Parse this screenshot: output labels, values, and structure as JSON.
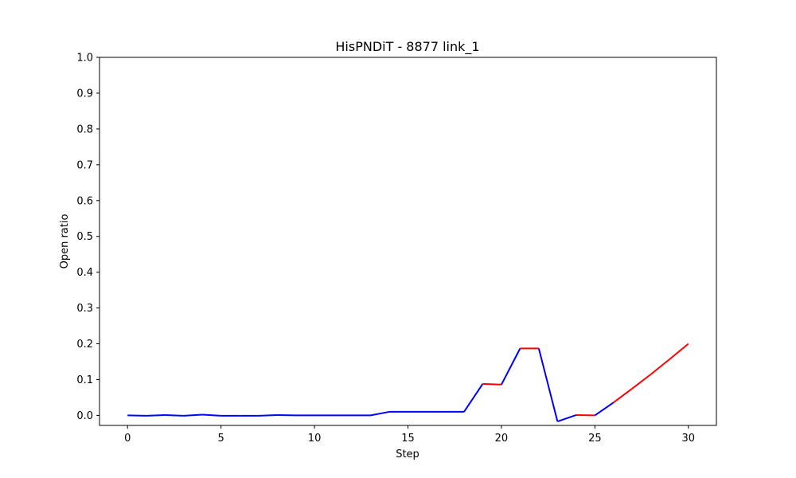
{
  "chart_data": {
    "type": "line",
    "title": "HisPNDiT - 8877 link_1",
    "xlabel": "Step",
    "ylabel": "Open ratio",
    "xlim": [
      -1.5,
      31.5
    ],
    "ylim": [
      -0.028,
      1.0
    ],
    "xticks": [
      0,
      5,
      10,
      15,
      20,
      25,
      30
    ],
    "yticks": [
      0.0,
      0.1,
      0.2,
      0.3,
      0.4,
      0.5,
      0.6,
      0.7,
      0.8,
      0.9,
      1.0
    ],
    "grid": false,
    "legend": "none",
    "x": [
      0,
      1,
      2,
      3,
      4,
      5,
      6,
      7,
      8,
      9,
      10,
      11,
      12,
      13,
      14,
      15,
      16,
      17,
      18,
      19,
      20,
      21,
      22,
      23,
      24,
      25,
      26,
      27,
      28,
      29,
      30
    ],
    "y": [
      0.0,
      -0.001,
      0.001,
      -0.001,
      0.002,
      -0.001,
      -0.001,
      -0.001,
      0.001,
      0.0,
      0.0,
      0.0,
      0.0,
      0.0,
      0.01,
      0.01,
      0.01,
      0.01,
      0.01,
      0.088,
      0.086,
      0.187,
      0.187,
      -0.017,
      0.001,
      0.0,
      0.036,
      0.075,
      0.115,
      0.157,
      0.2
    ],
    "segment_colors": [
      "blue",
      "blue",
      "blue",
      "blue",
      "blue",
      "blue",
      "blue",
      "blue",
      "blue",
      "blue",
      "blue",
      "blue",
      "blue",
      "blue",
      "blue",
      "blue",
      "blue",
      "blue",
      "blue",
      "red",
      "blue",
      "red",
      "blue",
      "blue",
      "red",
      "blue",
      "red",
      "red",
      "red",
      "red"
    ],
    "colors": {
      "blue": "#0000ff",
      "red": "#ff0000",
      "axis": "#000000"
    }
  }
}
